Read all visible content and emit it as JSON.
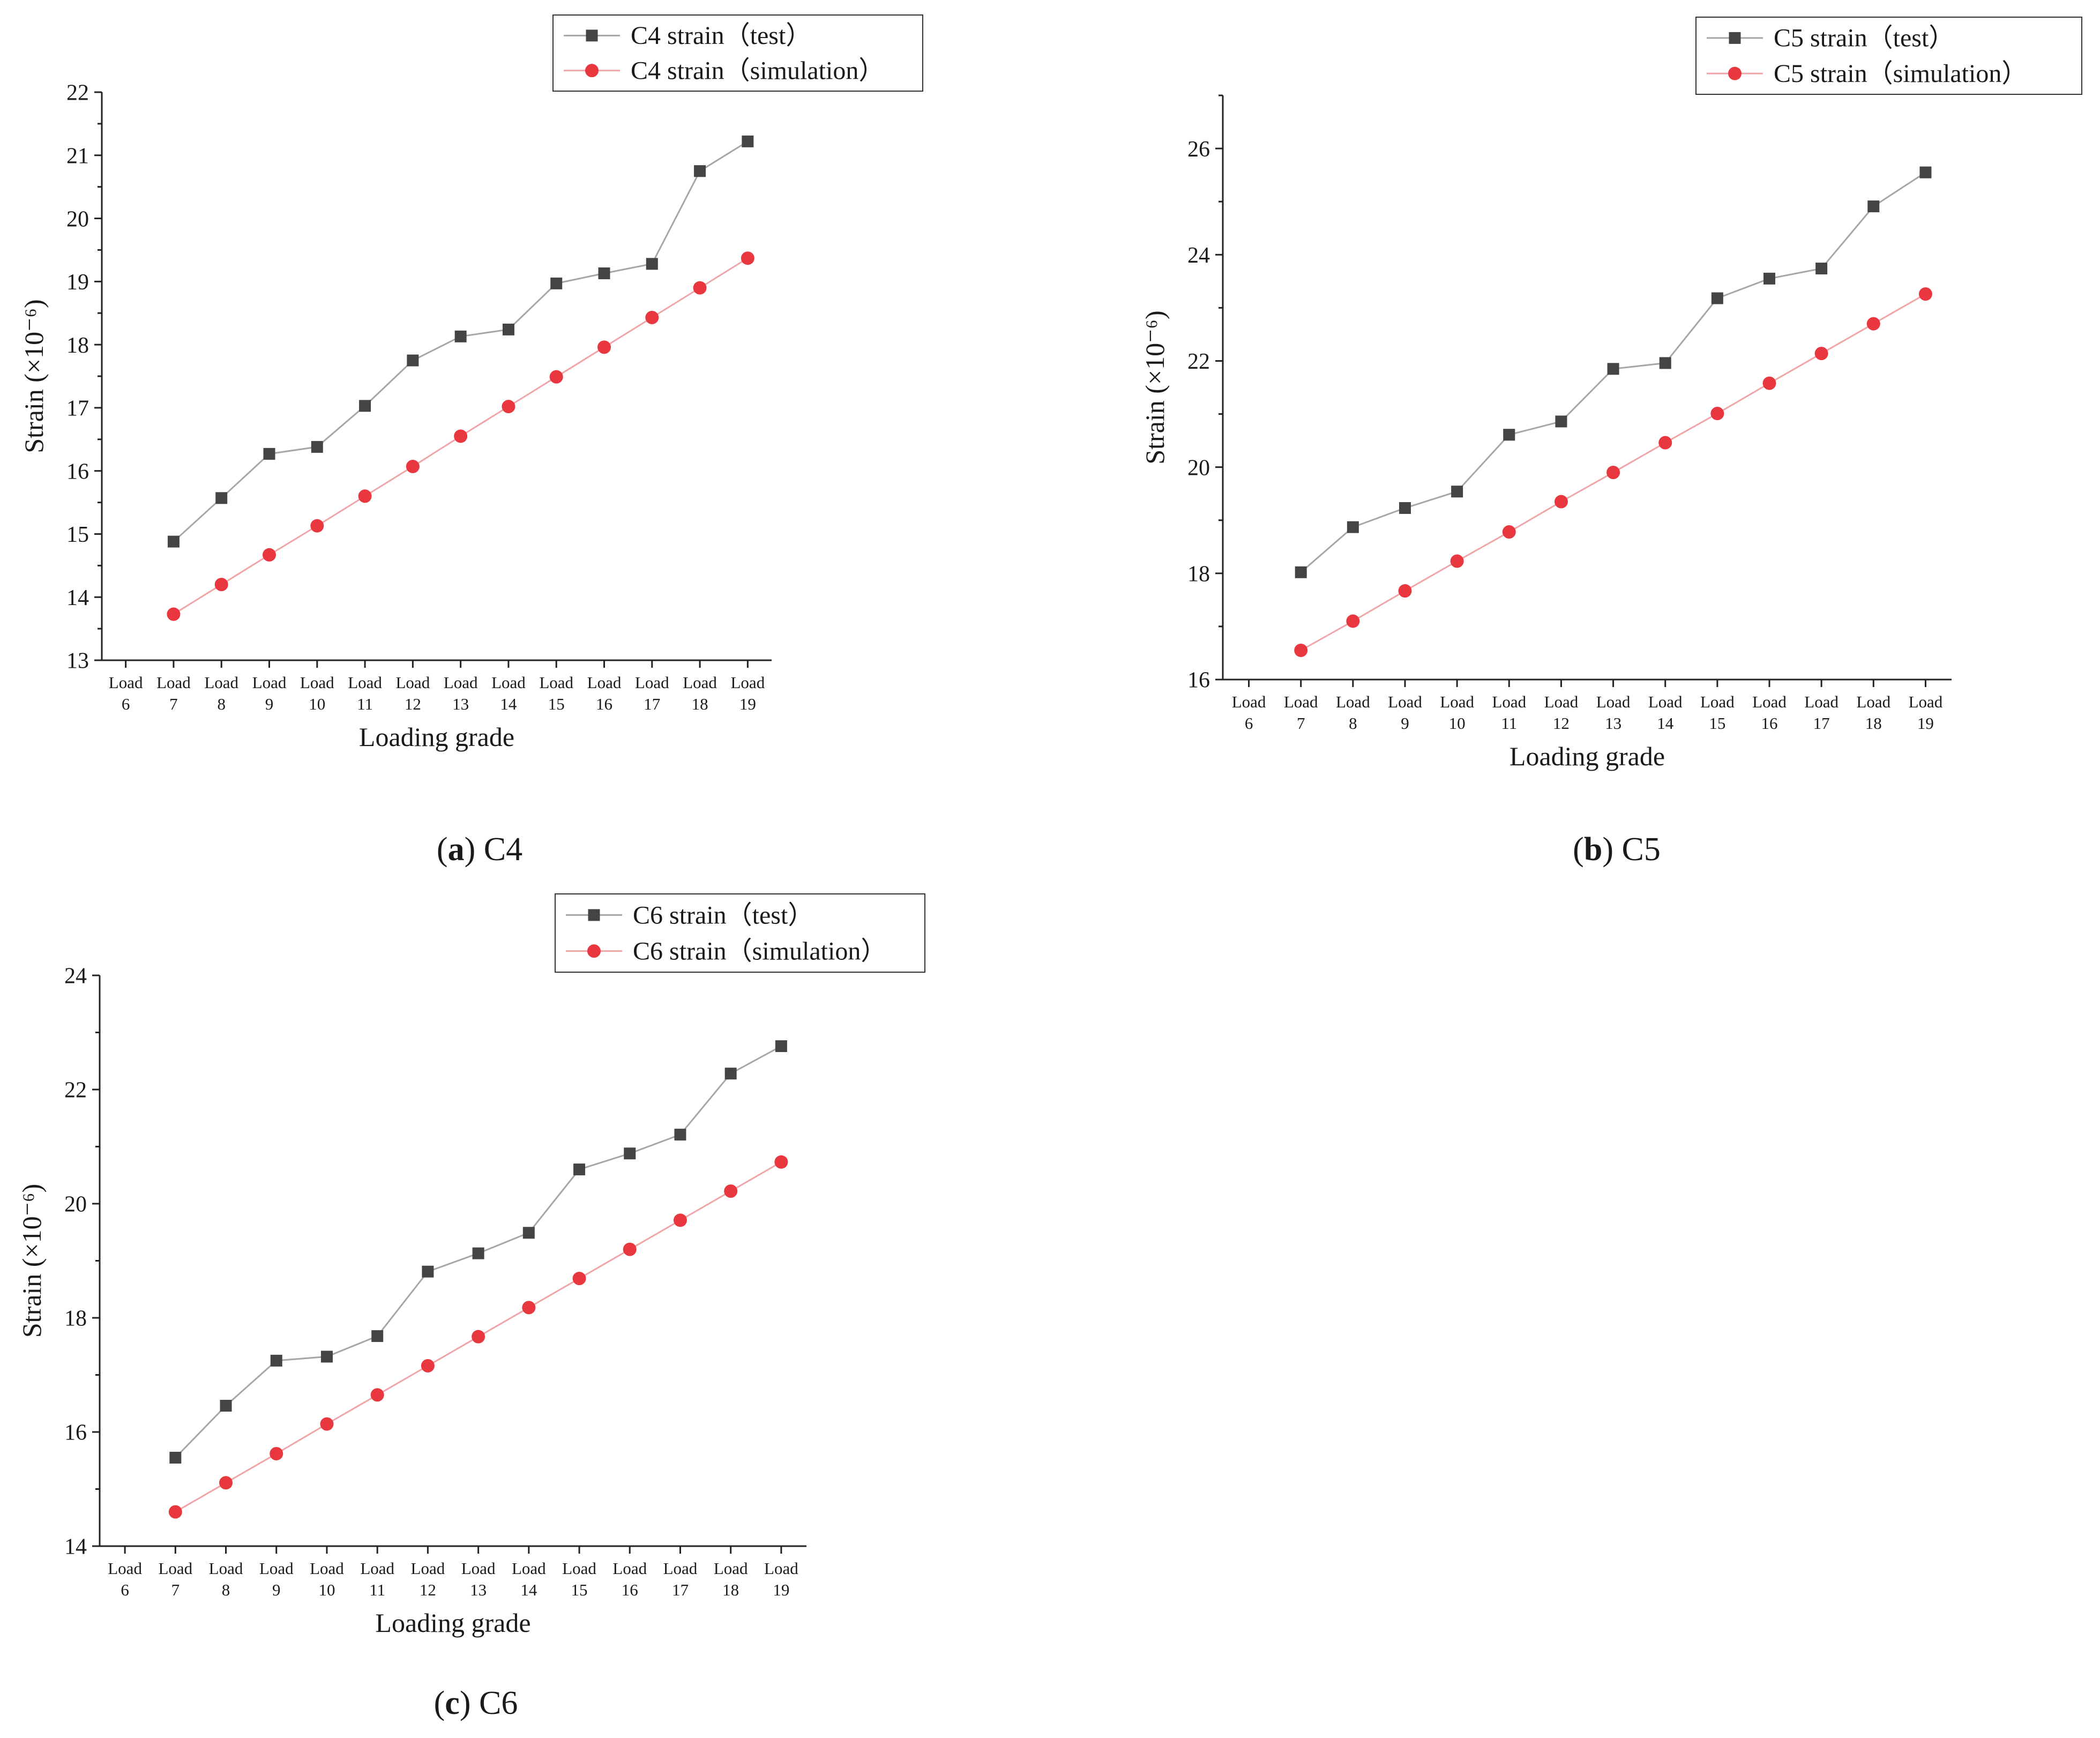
{
  "chart_data": [
    {
      "type": "line",
      "id": "c4",
      "panel_letter": "a",
      "panel_name": "C4",
      "title": "",
      "xlabel": "Loading grade",
      "ylabel": "Strain (×10⁻⁶)",
      "categories": [
        "Load 6",
        "Load 7",
        "Load 8",
        "Load 9",
        "Load 10",
        "Load 11",
        "Load 12",
        "Load 13",
        "Load 14",
        "Load 15",
        "Load 16",
        "Load 17",
        "Load 18",
        "Load 19"
      ],
      "tick_top": [
        "Load",
        "Load",
        "Load",
        "Load",
        "Load",
        "Load",
        "Load",
        "Load",
        "Load",
        "Load",
        "Load",
        "Load",
        "Load",
        "Load"
      ],
      "tick_bottom": [
        "6",
        "7",
        "8",
        "9",
        "10",
        "11",
        "12",
        "13",
        "14",
        "15",
        "16",
        "17",
        "18",
        "19"
      ],
      "ylim": [
        13,
        22
      ],
      "yticks": [
        13,
        14,
        15,
        16,
        17,
        18,
        19,
        20,
        21,
        22
      ],
      "y_minor_step": 0.5,
      "y_minor_max": 22,
      "legend": "top-right",
      "series": [
        {
          "name": "C4 strain（test）",
          "marker": "square",
          "color": "#444444",
          "line_color": "#a6a6a6",
          "values": [
            null,
            14.88,
            15.57,
            16.27,
            16.38,
            17.03,
            17.75,
            18.13,
            18.24,
            18.97,
            19.13,
            19.28,
            20.75,
            21.22
          ]
        },
        {
          "name": "C4 strain（simulation）",
          "marker": "circle",
          "color": "#e8373f",
          "line_color": "#f0a5a8",
          "values": [
            null,
            13.73,
            14.2,
            14.67,
            15.13,
            15.6,
            16.07,
            16.55,
            17.02,
            17.49,
            17.96,
            18.43,
            18.9,
            19.37
          ]
        }
      ]
    },
    {
      "type": "line",
      "id": "c5",
      "panel_letter": "b",
      "panel_name": "C5",
      "title": "",
      "xlabel": "Loading grade",
      "ylabel": "Strain (×10⁻⁶)",
      "categories": [
        "Load 6",
        "Load 7",
        "Load 8",
        "Load 9",
        "Load 10",
        "Load 11",
        "Load 12",
        "Load 13",
        "Load 14",
        "Load 15",
        "Load 16",
        "Load 17",
        "Load 18",
        "Load 19"
      ],
      "tick_top": [
        "Load",
        "Load",
        "Load",
        "Load",
        "Load",
        "Load",
        "Load",
        "Load",
        "Load",
        "Load",
        "Load",
        "Load",
        "Load",
        "Load"
      ],
      "tick_bottom": [
        "6",
        "7",
        "8",
        "9",
        "10",
        "11",
        "12",
        "13",
        "14",
        "15",
        "16",
        "17",
        "18",
        "19"
      ],
      "ylim": [
        16,
        27
      ],
      "yticks": [
        16,
        18,
        20,
        22,
        24,
        26
      ],
      "y_minor_step": 1,
      "y_minor_max": 27,
      "legend": "top-right",
      "series": [
        {
          "name": "C5 strain（test）",
          "marker": "square",
          "color": "#444444",
          "line_color": "#a6a6a6",
          "values": [
            null,
            18.02,
            18.87,
            19.23,
            19.54,
            20.61,
            20.86,
            21.85,
            21.96,
            23.18,
            23.55,
            23.74,
            24.91,
            25.55
          ]
        },
        {
          "name": "C5 strain（simulation）",
          "marker": "circle",
          "color": "#e8373f",
          "line_color": "#f0a5a8",
          "values": [
            null,
            16.55,
            17.1,
            17.67,
            18.23,
            18.78,
            19.35,
            19.9,
            20.46,
            21.01,
            21.58,
            22.14,
            22.7,
            23.26
          ]
        }
      ]
    },
    {
      "type": "line",
      "id": "c6",
      "panel_letter": "c",
      "panel_name": "C6",
      "title": "",
      "xlabel": "Loading grade",
      "ylabel": "Strain (×10⁻⁶)",
      "categories": [
        "Load 6",
        "Load 7",
        "Load 8",
        "Load 9",
        "Load 10",
        "Load 11",
        "Load 12",
        "Load 13",
        "Load 14",
        "Load 15",
        "Load 16",
        "Load 17",
        "Load 18",
        "Load 19"
      ],
      "tick_top": [
        "Load",
        "Load",
        "Load",
        "Load",
        "Load",
        "Load",
        "Load",
        "Load",
        "Load",
        "Load",
        "Load",
        "Load",
        "Load",
        "Load"
      ],
      "tick_bottom": [
        "6",
        "7",
        "8",
        "9",
        "10",
        "11",
        "12",
        "13",
        "14",
        "15",
        "16",
        "17",
        "18",
        "19"
      ],
      "ylim": [
        14,
        24
      ],
      "yticks": [
        14,
        16,
        18,
        20,
        22,
        24
      ],
      "y_minor_step": 1,
      "y_minor_max": 24,
      "legend": "top-right",
      "series": [
        {
          "name": "C6 strain（test）",
          "marker": "square",
          "color": "#444444",
          "line_color": "#a6a6a6",
          "values": [
            null,
            15.55,
            16.46,
            17.25,
            17.32,
            17.68,
            18.81,
            19.13,
            19.49,
            20.6,
            20.88,
            21.21,
            22.28,
            22.76
          ]
        },
        {
          "name": "C6 strain（simulation）",
          "marker": "circle",
          "color": "#e8373f",
          "line_color": "#f0a5a8",
          "values": [
            null,
            14.6,
            15.11,
            15.62,
            16.14,
            16.65,
            17.16,
            17.67,
            18.18,
            18.69,
            19.2,
            19.71,
            20.22,
            20.73
          ]
        }
      ]
    }
  ]
}
